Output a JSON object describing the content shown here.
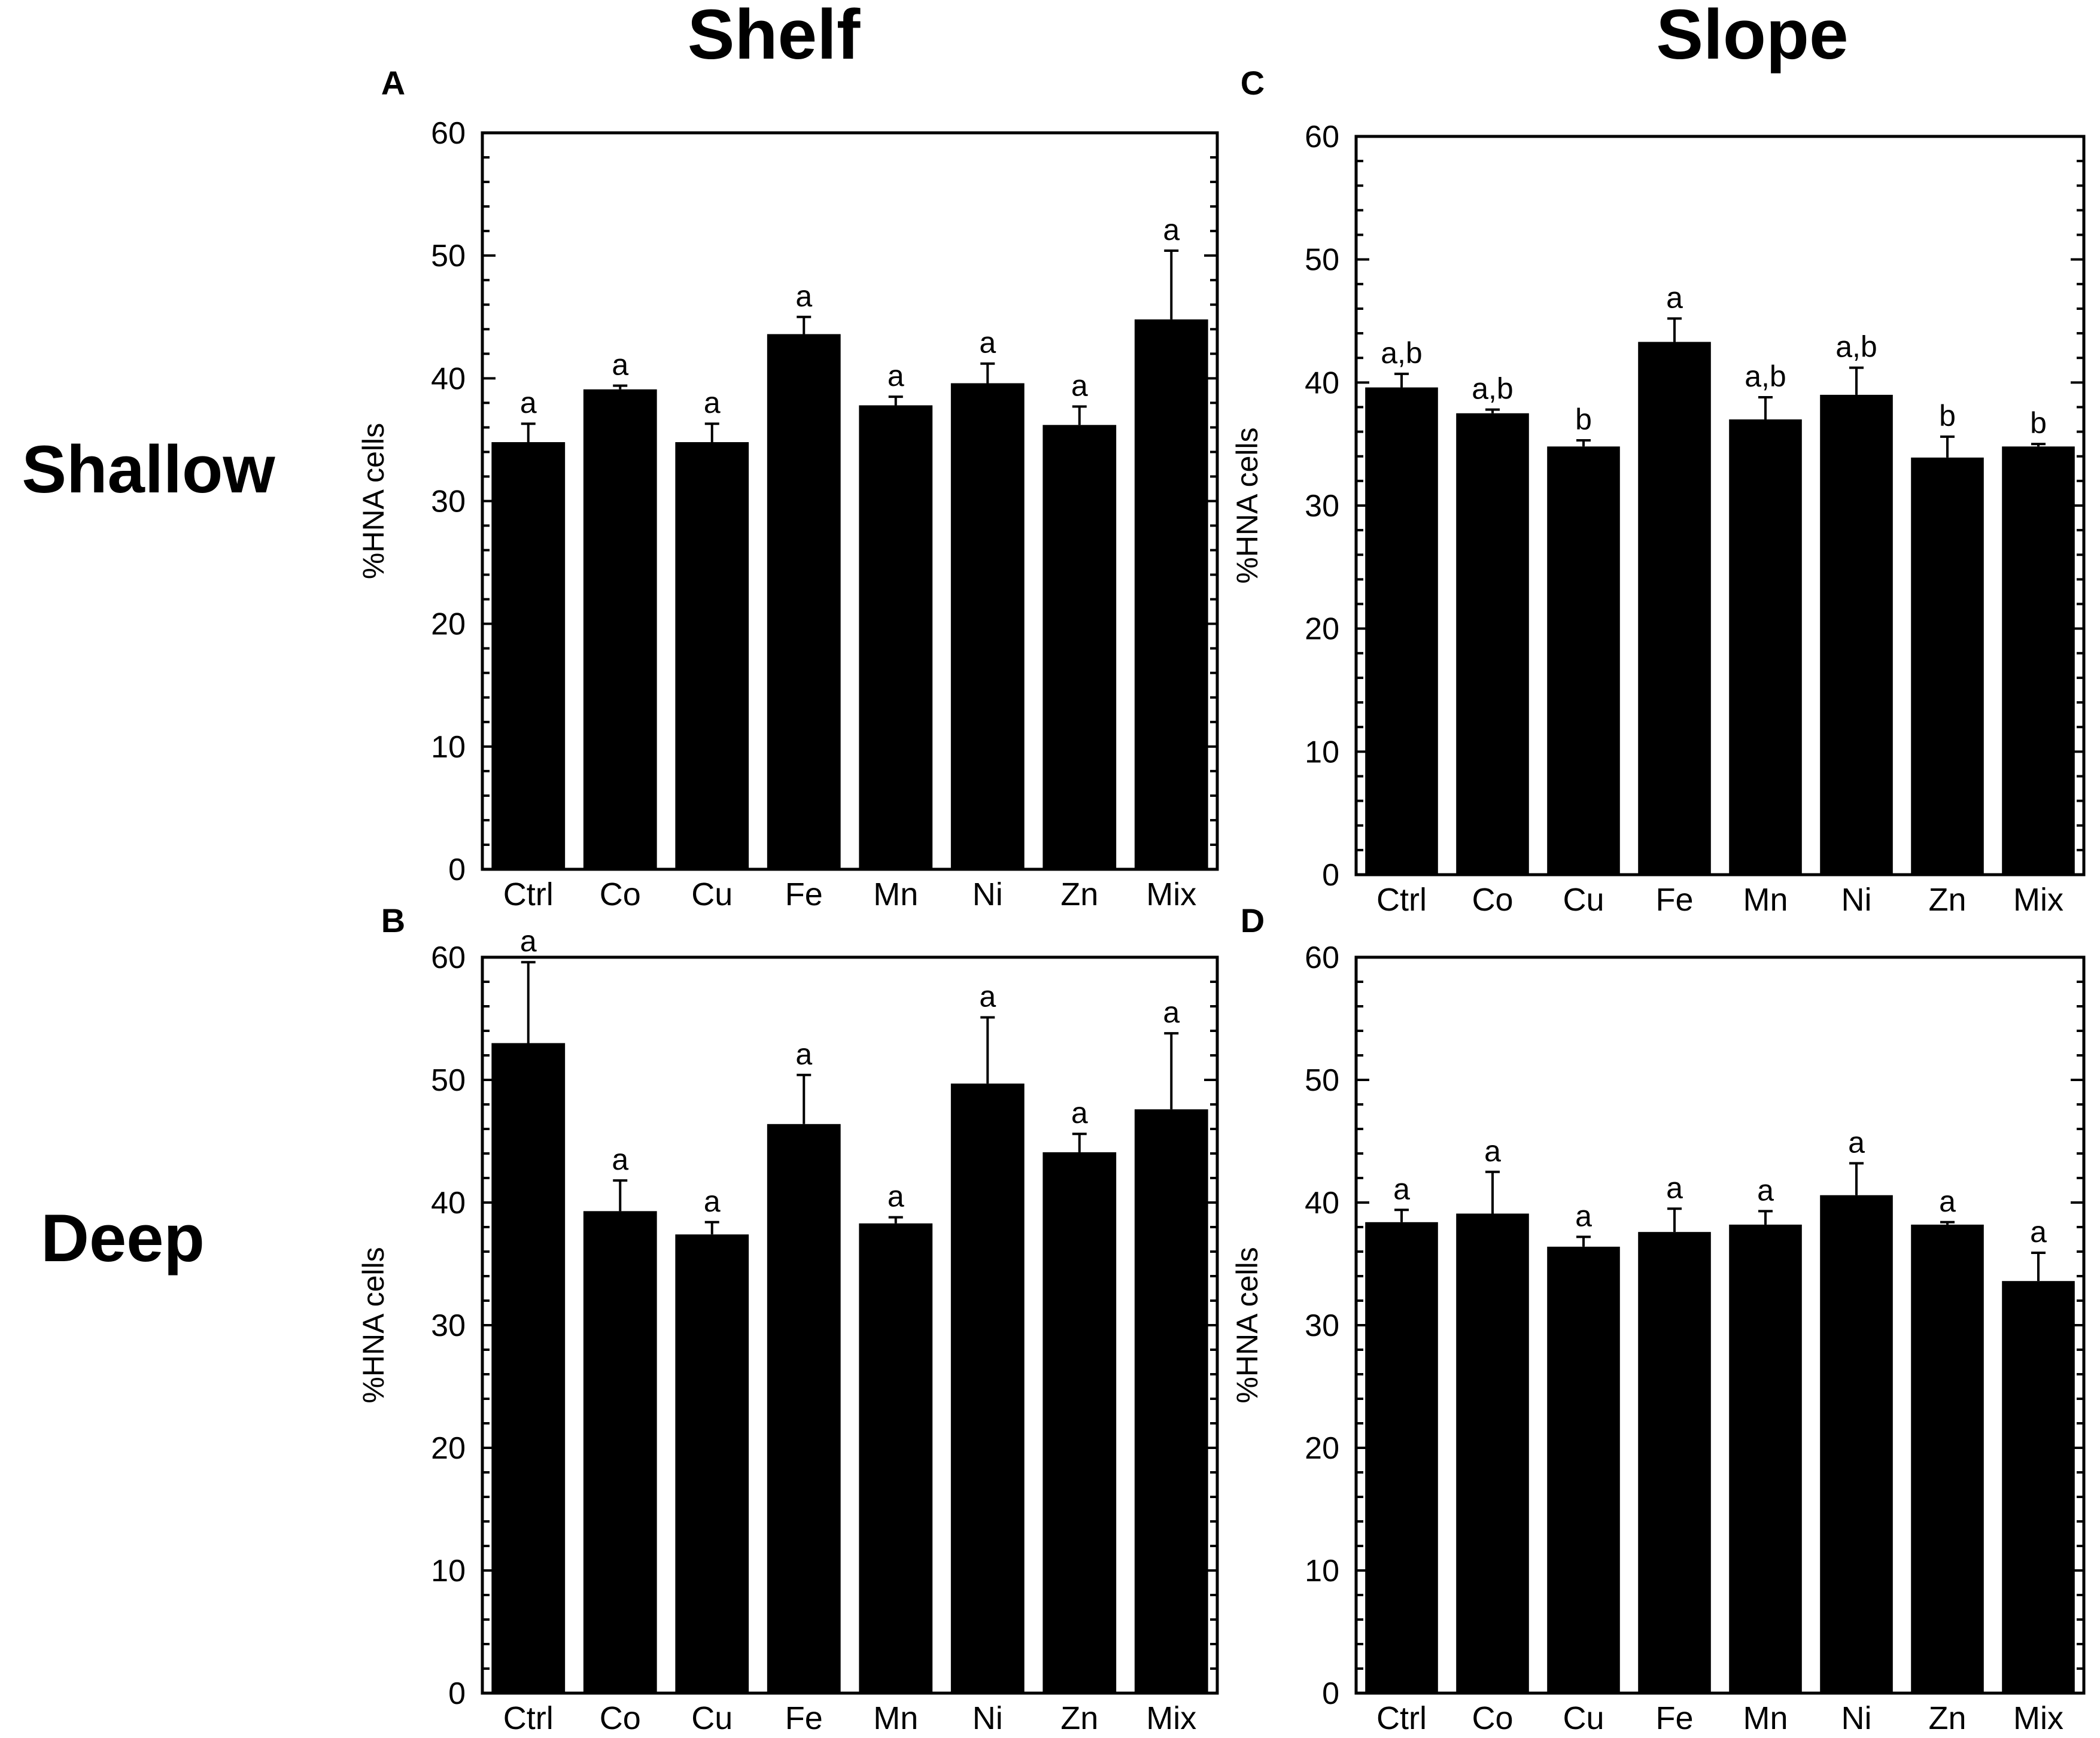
{
  "figure": {
    "column_titles": [
      "Shelf",
      "Slope"
    ],
    "row_titles": [
      "Shallow",
      "Deep"
    ]
  },
  "chart_data": [
    {
      "panel": "A",
      "type": "bar",
      "title": "",
      "xlabel": "",
      "ylabel": "%HNA cells",
      "ylim": [
        0,
        60
      ],
      "yticks": [
        0,
        10,
        20,
        30,
        40,
        50,
        60
      ],
      "categories": [
        "Ctrl",
        "Co",
        "Cu",
        "Fe",
        "Mn",
        "Ni",
        "Zn",
        "Mix"
      ],
      "values": [
        34.8,
        39.1,
        34.8,
        43.6,
        37.8,
        39.6,
        36.2,
        44.8
      ],
      "errors": [
        1.5,
        0.3,
        1.5,
        1.4,
        0.7,
        1.6,
        1.5,
        5.6
      ],
      "significance": [
        "a",
        "a",
        "a",
        "a",
        "a",
        "a",
        "a",
        "a"
      ]
    },
    {
      "panel": "B",
      "type": "bar",
      "title": "",
      "xlabel": "",
      "ylabel": "%HNA cells",
      "ylim": [
        0,
        60
      ],
      "yticks": [
        0,
        10,
        20,
        30,
        40,
        50,
        60
      ],
      "categories": [
        "Ctrl",
        "Co",
        "Cu",
        "Fe",
        "Mn",
        "Ni",
        "Zn",
        "Mix"
      ],
      "values": [
        53.0,
        39.3,
        37.4,
        46.4,
        38.3,
        49.7,
        44.1,
        47.6
      ],
      "errors": [
        6.6,
        2.5,
        1.0,
        4.0,
        0.5,
        5.4,
        1.5,
        6.2
      ],
      "significance": [
        "a",
        "a",
        "a",
        "a",
        "a",
        "a",
        "a",
        "a"
      ]
    },
    {
      "panel": "C",
      "type": "bar",
      "title": "",
      "xlabel": "",
      "ylabel": "%HNA cells",
      "ylim": [
        0,
        60
      ],
      "yticks": [
        0,
        10,
        20,
        30,
        40,
        50,
        60
      ],
      "categories": [
        "Ctrl",
        "Co",
        "Cu",
        "Fe",
        "Mn",
        "Ni",
        "Zn",
        "Mix"
      ],
      "values": [
        39.6,
        37.5,
        34.8,
        43.3,
        37.0,
        39.0,
        33.9,
        34.8
      ],
      "errors": [
        1.1,
        0.3,
        0.5,
        1.9,
        1.8,
        2.2,
        1.7,
        0.2
      ],
      "significance": [
        "a,b",
        "a,b",
        "b",
        "a",
        "a,b",
        "a,b",
        "b",
        "b"
      ]
    },
    {
      "panel": "D",
      "type": "bar",
      "title": "",
      "xlabel": "",
      "ylabel": "%HNA cells",
      "ylim": [
        0,
        60
      ],
      "yticks": [
        0,
        10,
        20,
        30,
        40,
        50,
        60
      ],
      "categories": [
        "Ctrl",
        "Co",
        "Cu",
        "Fe",
        "Mn",
        "Ni",
        "Zn",
        "Mix"
      ],
      "values": [
        38.4,
        39.1,
        36.4,
        37.6,
        38.2,
        40.6,
        38.2,
        33.6
      ],
      "errors": [
        1.0,
        3.4,
        0.8,
        1.9,
        1.1,
        2.6,
        0.2,
        2.3
      ],
      "significance": [
        "a",
        "a",
        "a",
        "a",
        "a",
        "a",
        "a",
        "a"
      ]
    }
  ]
}
